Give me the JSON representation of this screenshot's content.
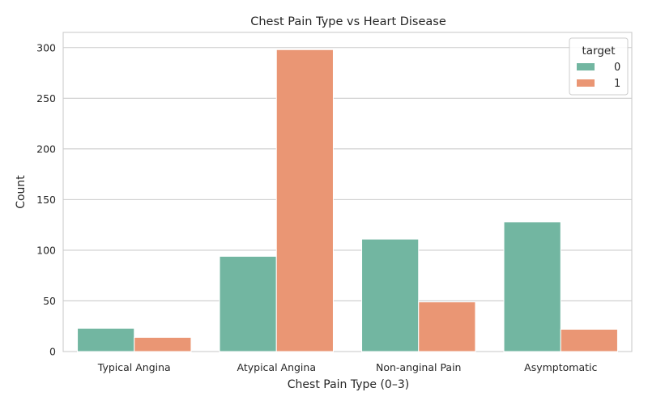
{
  "chart_data": {
    "type": "bar",
    "title": "Chest Pain Type vs Heart Disease",
    "xlabel": "Chest Pain Type (0–3)",
    "ylabel": "Count",
    "categories": [
      "Typical Angina",
      "Atypical Angina",
      "Non-anginal Pain",
      "Asymptomatic"
    ],
    "series": [
      {
        "name": "0",
        "values": [
          23,
          94,
          111,
          128
        ],
        "color": "#72b6a1"
      },
      {
        "name": "1",
        "values": [
          14,
          298,
          49,
          22
        ],
        "color": "#ea9674"
      }
    ],
    "ylim": [
      0,
      315
    ],
    "yticks": [
      "0",
      "50",
      "100",
      "150",
      "200",
      "250",
      "300"
    ],
    "grid": true,
    "legend": {
      "title": "target",
      "position": "top-right"
    }
  }
}
